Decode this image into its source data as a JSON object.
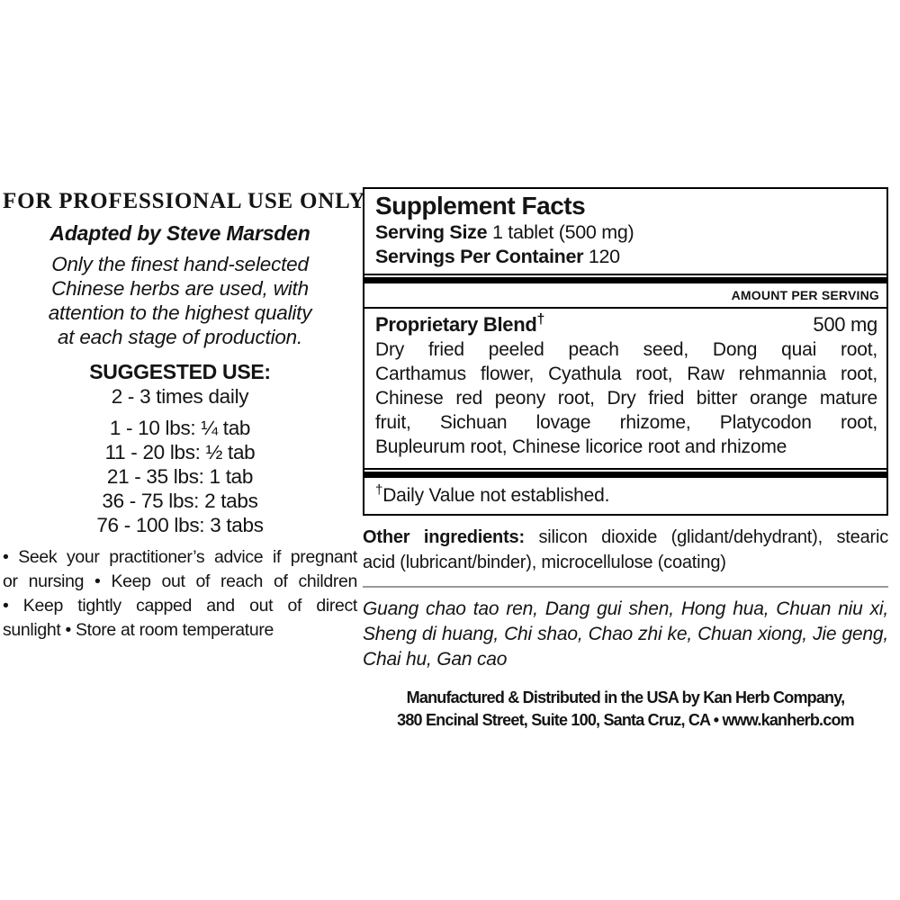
{
  "colors": {
    "background": "#ffffff",
    "text": "#141414",
    "box_border": "#000000",
    "thin_rule_gray": "#9a9a9a"
  },
  "left_column": {
    "title": "FOR PROFESSIONAL USE ONLY",
    "byline": "Adapted by Steve Marsden",
    "quality_lines": [
      "Only the finest hand-selected",
      "Chinese herbs are used, with",
      "attention to the highest quality",
      "at each stage of production."
    ],
    "suggested_use_heading": "SUGGESTED USE:",
    "frequency": "2 - 3 times daily",
    "dose_lines": [
      "1 - 10 lbs: ¼ tab",
      "11 - 20 lbs: ½ tab",
      "21 - 35 lbs: 1 tab",
      "36 - 75 lbs: 2 tabs",
      "76 - 100 lbs: 3 tabs"
    ],
    "caution_lines": [
      "• Seek your practitioner’s advice if pregnant",
      "or nursing • Keep out of reach of children",
      "• Keep tightly capped and out of direct",
      "sunlight • Store at room temperature"
    ]
  },
  "supplement_facts": {
    "title": "Supplement Facts",
    "serving_size_label": "Serving Size",
    "serving_size_value": "1 tablet (500 mg)",
    "servings_per_container_label": "Servings Per Container",
    "servings_per_container_value": "120",
    "amount_per_serving_header": "AMOUNT PER SERVING",
    "blend_name": "Proprietary Blend",
    "blend_dagger": "†",
    "blend_amount": "500 mg",
    "blend_lines": [
      "Dry fried peeled peach seed, Dong quai root,",
      "Carthamus flower, Cyathula root, Raw rehmannia root,",
      "Chinese red peony root, Dry fried bitter orange mature",
      "fruit, Sichuan lovage rhizome, Platycodon root,",
      "Bupleurum root, Chinese licorice root and rhizome"
    ],
    "daily_value_dagger": "†",
    "daily_value_note": "Daily Value not established."
  },
  "other_ingredients": {
    "label": "Other ingredients:",
    "line1_rest": "silicon dioxide (glidant/dehydrant), stearic",
    "line2": "acid (lubricant/binder), microcellulose (coating)"
  },
  "pinyin_lines": [
    "Guang chao tao ren, Dang gui shen, Hong hua, Chuan niu xi,",
    "Sheng di huang, Chi shao, Chao zhi ke, Chuan xiong, Jie geng,",
    "Chai hu, Gan cao"
  ],
  "manufacturer": {
    "line1": "Manufactured & Distributed in the USA by Kan Herb Company,",
    "line2": "380 Encinal Street, Suite 100, Santa Cruz, CA • www.kanherb.com"
  }
}
